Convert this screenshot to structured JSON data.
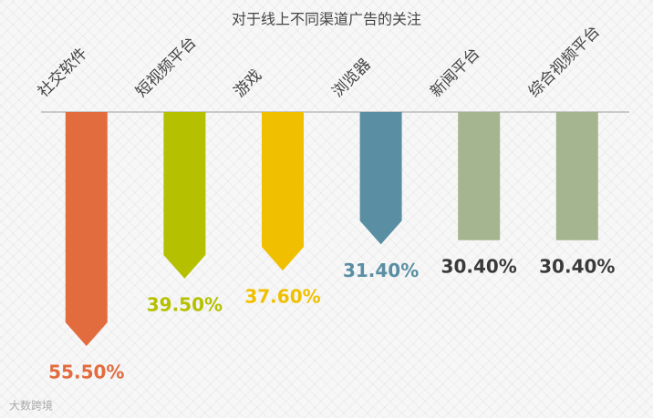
{
  "chart_data": {
    "type": "bar",
    "title": "对于线上不同渠道广告的关注",
    "categories": [
      "社交软件",
      "短视频平台",
      "游戏",
      "浏览器",
      "新闻平台",
      "综合视频平台"
    ],
    "values": [
      55.5,
      39.5,
      37.6,
      31.4,
      30.4,
      30.4
    ],
    "value_labels": [
      "55.50%",
      "39.50%",
      "37.60%",
      "31.40%",
      "30.40%",
      "30.40%"
    ],
    "colors": [
      "#e36c3f",
      "#b5c000",
      "#f0c000",
      "#5a8fa3",
      "#a5b590",
      "#a5b590"
    ],
    "value_label_colors": [
      "#e36c3f",
      "#b5c000",
      "#f0c000",
      "#5a8fa3",
      "#3a3a3a",
      "#3a3a3a"
    ],
    "marker_shapes": [
      "arrow",
      "arrow",
      "arrow",
      "arrow",
      "rect",
      "rect"
    ]
  },
  "watermark": "大数跨境"
}
